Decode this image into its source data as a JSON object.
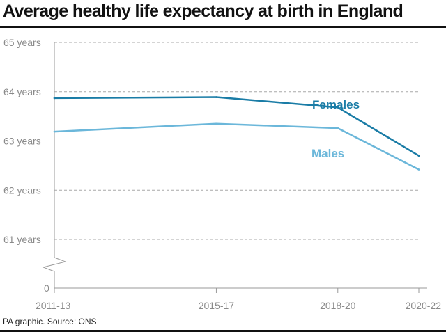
{
  "chart_data": {
    "type": "line",
    "title": "Average healthy life expectancy at birth in England",
    "categories": [
      "2011-13",
      "2015-17",
      "2018-20",
      "2020-22"
    ],
    "x_positions": [
      2012,
      2016,
      2019,
      2021
    ],
    "yticks": [
      "65 years",
      "64 years",
      "63 years",
      "62 years",
      "61 years",
      "0"
    ],
    "ytick_values": [
      65,
      64,
      63,
      62,
      61
    ],
    "ylim": [
      61,
      65
    ],
    "axis_break": true,
    "grid": true,
    "series": [
      {
        "name": "Females",
        "values": [
          63.87,
          63.89,
          63.68,
          62.7
        ],
        "color": "#1a7ca6"
      },
      {
        "name": "Males",
        "values": [
          63.19,
          63.35,
          63.26,
          62.42
        ],
        "color": "#6bb7da"
      }
    ],
    "source": "PA graphic. Source: ONS"
  }
}
